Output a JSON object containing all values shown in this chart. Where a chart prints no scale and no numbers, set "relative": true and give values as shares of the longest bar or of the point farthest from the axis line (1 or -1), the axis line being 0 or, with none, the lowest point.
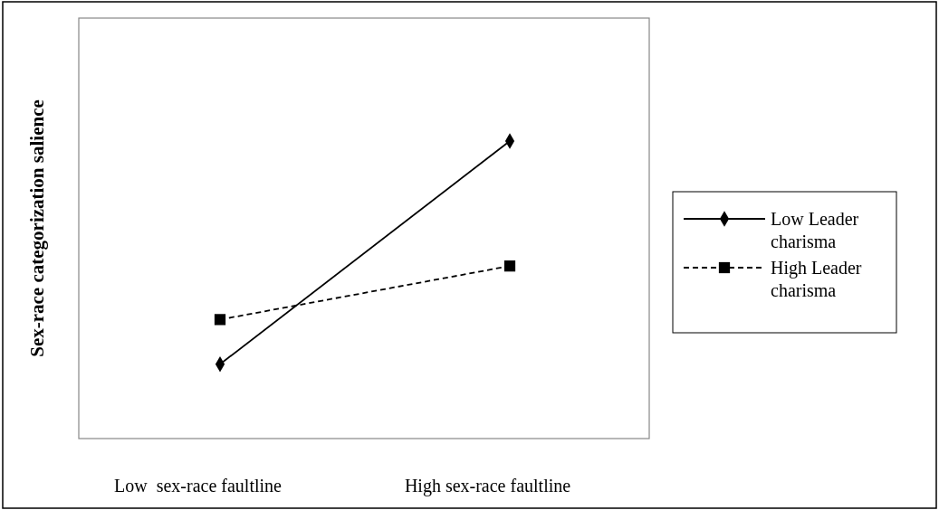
{
  "chart_data": {
    "type": "line",
    "relative": true,
    "ylabel": "Sex-race categorization salience",
    "categories": [
      "Low  sex-race faultline",
      "High sex-race faultline"
    ],
    "legend": "right",
    "series": [
      {
        "name": "Low Leader charisma",
        "color": "#000000",
        "values": [
          0.25,
          1
        ],
        "marker": "diamond",
        "line_style": "solid"
      },
      {
        "name": "High Leader charisma",
        "color": "#000000",
        "values": [
          0.4,
          0.58
        ],
        "marker": "square",
        "line_style": "dashed"
      }
    ]
  }
}
